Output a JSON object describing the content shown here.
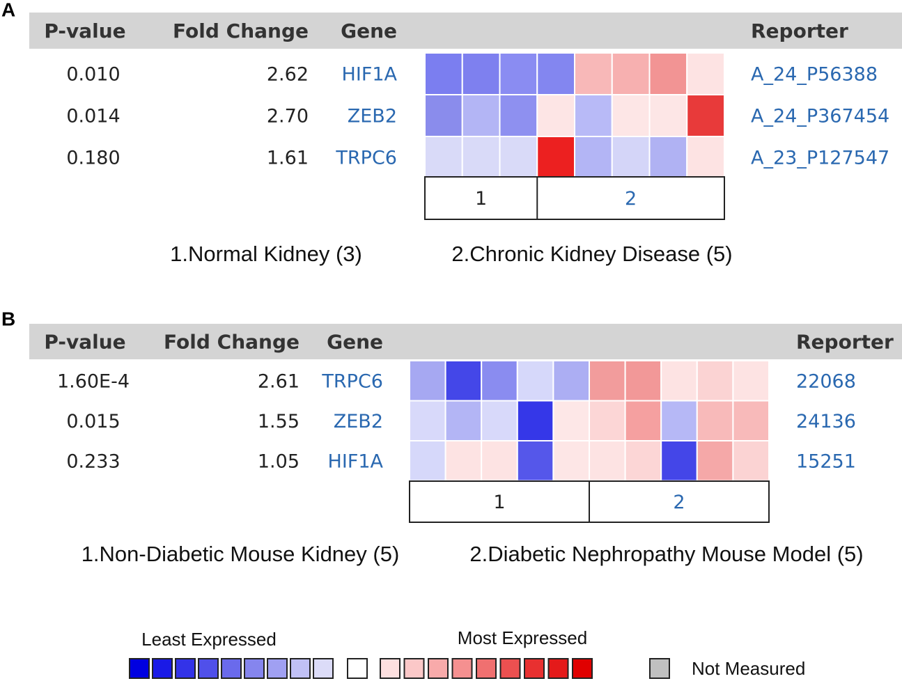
{
  "panels": [
    {
      "label": "A",
      "header": {
        "p_value": "P-value",
        "fold_change": "Fold Change",
        "gene": "Gene",
        "reporter": "Reporter"
      },
      "rows": [
        {
          "p_value": "0.010",
          "fold_change": "2.62",
          "gene": "HIF1A",
          "reporter": "A_24_P56388",
          "cells": [
            "#7b7ef0",
            "#7e80ef",
            "#8a8cf2",
            "#8386f0",
            "#f8b8b8",
            "#f7b0b0",
            "#f29494",
            "#fde3e3"
          ]
        },
        {
          "p_value": "0.014",
          "fold_change": "2.70",
          "gene": "ZEB2",
          "reporter": "A_24_P367454",
          "cells": [
            "#8a8cec",
            "#b3b5f5",
            "#8e90f0",
            "#fde5e5",
            "#b8baf7",
            "#fde6e6",
            "#fde6e6",
            "#e83a3a"
          ]
        },
        {
          "p_value": "0.180",
          "fold_change": "1.61",
          "gene": "TRPC6",
          "reporter": "A_23_P127547",
          "cells": [
            "#d9daf8",
            "#d9daf8",
            "#d9daf8",
            "#ec2020",
            "#b3b5f5",
            "#d4d5f8",
            "#b0b2f3",
            "#fde3e3"
          ]
        }
      ],
      "groups": [
        "1",
        "2"
      ],
      "captions": [
        "1.Normal Kidney (3)",
        "2.Chronic Kidney Disease (5)"
      ]
    },
    {
      "label": "B",
      "header": {
        "p_value": "P-value",
        "fold_change": "Fold Change",
        "gene": "Gene",
        "reporter": "Reporter"
      },
      "rows": [
        {
          "p_value": "1.60E-4",
          "fold_change": "2.61",
          "gene": "TRPC6",
          "reporter": "22068",
          "cells": [
            "#a6a8f2",
            "#4447e8",
            "#8a8cf0",
            "#d6d8fa",
            "#acaef3",
            "#f29c9c",
            "#f29898",
            "#fde3e3",
            "#fbd3d3",
            "#fde3e3"
          ]
        },
        {
          "p_value": "0.015",
          "fold_change": "1.55",
          "gene": "ZEB2",
          "reporter": "24136",
          "cells": [
            "#d8d9fa",
            "#b3b5f5",
            "#d8d9fa",
            "#3537e8",
            "#fde7e7",
            "#fcd6d6",
            "#f5a0a0",
            "#b6b8f6",
            "#f8baba",
            "#f8baba"
          ]
        },
        {
          "p_value": "0.233",
          "fold_change": "1.05",
          "gene": "HIF1A",
          "reporter": "15251",
          "cells": [
            "#d6d8fa",
            "#fde3e3",
            "#fde3e3",
            "#5557ea",
            "#fde6e6",
            "#fde3e3",
            "#fcd6d6",
            "#4446e8",
            "#f5a8a8",
            "#fbd3d3"
          ]
        }
      ],
      "groups": [
        "1",
        "2"
      ],
      "captions": [
        "1.Non-Diabetic Mouse Kidney (5)",
        "2.Diabetic Nephropathy Mouse Model (5)"
      ]
    }
  ],
  "legend": {
    "least": "Least Expressed",
    "most": "Most Expressed",
    "not_measured": "Not Measured",
    "blues": [
      "#0000e0",
      "#1a1ae6",
      "#3333e8",
      "#5050ea",
      "#6a6aec",
      "#8585ee",
      "#a0a0f2",
      "#c0c0f5",
      "#dcdcf8"
    ],
    "neutral": "#ffffff",
    "reds": [
      "#fde0e0",
      "#fbc8c8",
      "#f8aaaa",
      "#f59090",
      "#f07070",
      "#ec5050",
      "#e83030",
      "#e41a1a",
      "#e00000"
    ],
    "not_measured_color": "#c0c0c0"
  }
}
